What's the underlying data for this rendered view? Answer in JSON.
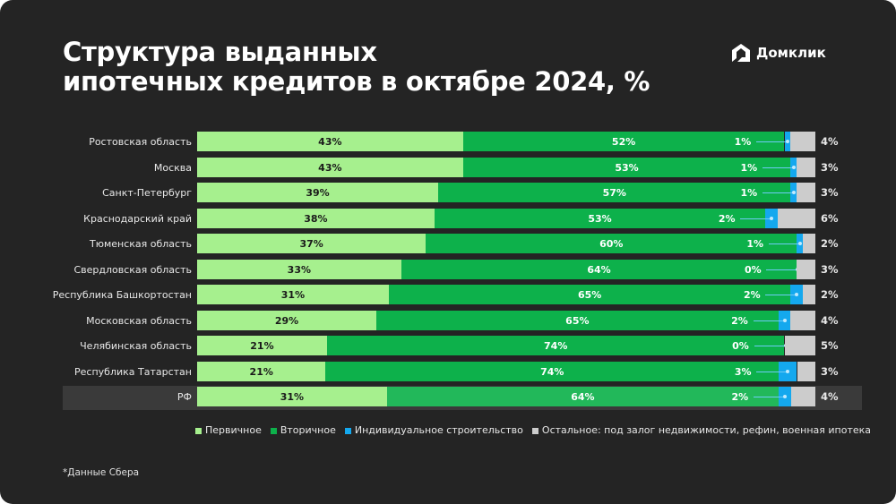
{
  "title_line1": "Структура выданных",
  "title_line2": "ипотечных кредитов в октябре 2024, %",
  "logo_text": "Домклик",
  "footnote": "*Данные Сбера",
  "colors": {
    "primary": "#a6f08e",
    "secondary": "#0db14b",
    "secondary_highlight": "#22b85a",
    "individual": "#14a8ee",
    "other": "#cccccc",
    "background": "#242424"
  },
  "chart_data": {
    "type": "bar",
    "orientation": "horizontal",
    "stacked": true,
    "categories": [
      "Ростовская область",
      "Москва",
      "Санкт-Петербург",
      "Краснодарский край",
      "Тюменская область",
      "Свердловская область",
      "Республика Башкортостан",
      "Московская область",
      "Челябинская область",
      "Республика Татарстан",
      "РФ"
    ],
    "highlighted_category": "РФ",
    "series": [
      {
        "name": "Первичное",
        "values": [
          43,
          43,
          39,
          38,
          37,
          33,
          31,
          29,
          21,
          21,
          31
        ]
      },
      {
        "name": "Вторичное",
        "values": [
          52,
          53,
          57,
          53,
          60,
          64,
          65,
          65,
          74,
          74,
          64
        ]
      },
      {
        "name": "Индивидуальное строительство",
        "values": [
          1,
          1,
          1,
          2,
          1,
          0,
          2,
          2,
          0,
          3,
          2
        ]
      },
      {
        "name": "Остальное: под залог недвижимости, рефин, военная ипотека",
        "values": [
          4,
          3,
          3,
          6,
          2,
          3,
          2,
          4,
          5,
          3,
          4
        ]
      }
    ],
    "unit": "%",
    "legend": "bottom"
  }
}
